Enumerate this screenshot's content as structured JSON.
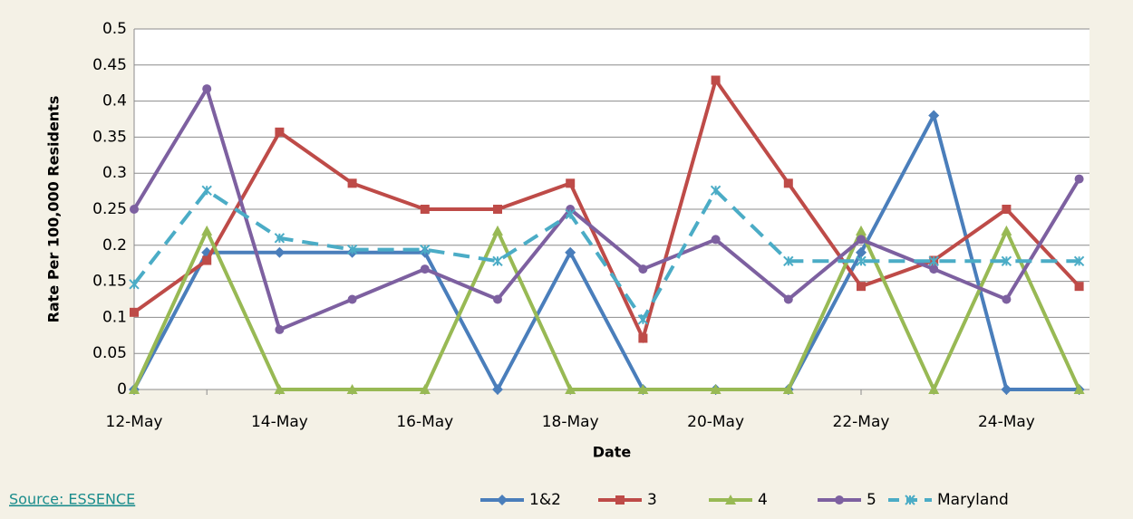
{
  "chart_data": {
    "type": "line",
    "x_label": "Date",
    "y_label": "Rate Per 100,000 Residents",
    "categories": [
      "12-May",
      null,
      "14-May",
      null,
      "16-May",
      null,
      "18-May",
      null,
      "20-May",
      null,
      "22-May",
      null,
      "24-May",
      null
    ],
    "series": [
      {
        "name": "1&2",
        "color": "#4a7ebb",
        "values": [
          0,
          0.19,
          0.19,
          0.19,
          0.19,
          0,
          0.19,
          0,
          0,
          0,
          0.19,
          0.38,
          0,
          0
        ]
      },
      {
        "name": "3",
        "color": "#be4b48",
        "values": [
          0.107,
          0.179,
          0.357,
          0.286,
          0.25,
          0.25,
          0.286,
          0.071,
          0.429,
          0.286,
          0.143,
          0.179,
          0.25,
          0.143
        ]
      },
      {
        "name": "4",
        "color": "#98b954",
        "values": [
          0,
          0.22,
          0,
          0,
          0,
          0.22,
          0,
          0,
          0,
          0,
          0.22,
          0,
          0.22,
          0
        ]
      },
      {
        "name": "5",
        "color": "#7d60a0",
        "values": [
          0.25,
          0.417,
          0.083,
          0.125,
          0.167,
          0.125,
          0.25,
          0.167,
          0.208,
          0.125,
          0.208,
          0.167,
          0.125,
          0.292
        ]
      },
      {
        "name": "Maryland",
        "color": "#4bacc6",
        "dashed": true,
        "values": [
          0.146,
          0.276,
          0.21,
          0.194,
          0.194,
          0.178,
          0.243,
          0.097,
          0.276,
          0.178,
          0.178,
          0.178,
          0.178,
          0.178
        ]
      }
    ],
    "ylim": [
      0,
      0.5
    ],
    "yticks": [
      0,
      0.05,
      0.1,
      0.15,
      0.2,
      0.25,
      0.3,
      0.35,
      0.4,
      0.45,
      0.5
    ],
    "grid": true,
    "legend": "bottom-right",
    "source": "Source: ESSENCE"
  }
}
